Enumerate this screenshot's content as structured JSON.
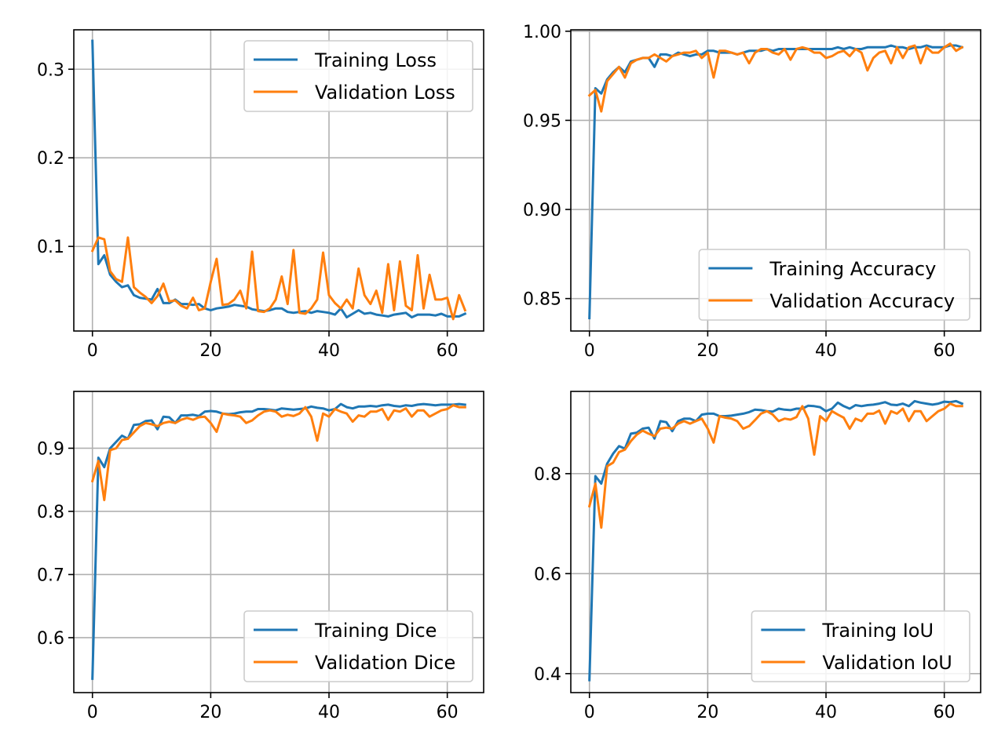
{
  "chart_data": [
    {
      "type": "line",
      "title": "",
      "xlabel": "",
      "ylabel": "",
      "xlim": [
        -3.15,
        66.15
      ],
      "ylim": [
        0.0045,
        0.3445
      ],
      "xticks": [
        0,
        20,
        40,
        60
      ],
      "yticks": [
        0.1,
        0.2,
        0.3
      ],
      "xtick_labels": [
        "0",
        "20",
        "40",
        "60"
      ],
      "ytick_labels": [
        "0.1",
        "0.2",
        "0.3"
      ],
      "grid": true,
      "legend_position": "upper right",
      "series": [
        {
          "name": "Training Loss",
          "color": "#1f77b4",
          "values": [
            0.332,
            0.08,
            0.09,
            0.068,
            0.06,
            0.054,
            0.056,
            0.045,
            0.042,
            0.041,
            0.04,
            0.052,
            0.036,
            0.036,
            0.04,
            0.035,
            0.035,
            0.034,
            0.035,
            0.03,
            0.028,
            0.03,
            0.031,
            0.032,
            0.034,
            0.033,
            0.032,
            0.029,
            0.028,
            0.027,
            0.028,
            0.03,
            0.03,
            0.026,
            0.025,
            0.026,
            0.027,
            0.025,
            0.027,
            0.026,
            0.025,
            0.023,
            0.03,
            0.02,
            0.024,
            0.028,
            0.024,
            0.025,
            0.023,
            0.022,
            0.021,
            0.023,
            0.024,
            0.025,
            0.02,
            0.023,
            0.023,
            0.023,
            0.022,
            0.024,
            0.021,
            0.021,
            0.021,
            0.024
          ]
        },
        {
          "name": "Validation Loss",
          "color": "#ff7f0e",
          "values": [
            0.095,
            0.11,
            0.108,
            0.072,
            0.063,
            0.06,
            0.11,
            0.054,
            0.048,
            0.043,
            0.036,
            0.044,
            0.058,
            0.038,
            0.039,
            0.033,
            0.03,
            0.042,
            0.028,
            0.03,
            0.06,
            0.086,
            0.034,
            0.035,
            0.04,
            0.05,
            0.03,
            0.094,
            0.027,
            0.026,
            0.03,
            0.04,
            0.066,
            0.035,
            0.096,
            0.025,
            0.024,
            0.03,
            0.04,
            0.093,
            0.045,
            0.036,
            0.03,
            0.04,
            0.03,
            0.075,
            0.045,
            0.035,
            0.05,
            0.025,
            0.08,
            0.028,
            0.083,
            0.033,
            0.028,
            0.09,
            0.03,
            0.068,
            0.04,
            0.04,
            0.042,
            0.018,
            0.045,
            0.028
          ]
        }
      ]
    },
    {
      "type": "line",
      "title": "",
      "xlabel": "",
      "ylabel": "",
      "xlim": [
        -3.15,
        66.15
      ],
      "ylim": [
        0.8318,
        1.0008
      ],
      "xticks": [
        0,
        20,
        40,
        60
      ],
      "yticks": [
        0.85,
        0.9,
        0.95,
        1.0
      ],
      "xtick_labels": [
        "0",
        "20",
        "40",
        "60"
      ],
      "ytick_labels": [
        "0.85",
        "0.90",
        "0.95",
        "1.00"
      ],
      "grid": true,
      "legend_position": "lower right",
      "series": [
        {
          "name": "Training Accuracy",
          "color": "#1f77b4",
          "values": [
            0.839,
            0.968,
            0.965,
            0.973,
            0.977,
            0.98,
            0.977,
            0.983,
            0.984,
            0.985,
            0.985,
            0.98,
            0.987,
            0.987,
            0.986,
            0.988,
            0.987,
            0.986,
            0.987,
            0.987,
            0.989,
            0.989,
            0.988,
            0.988,
            0.988,
            0.987,
            0.988,
            0.989,
            0.989,
            0.989,
            0.99,
            0.989,
            0.99,
            0.99,
            0.99,
            0.99,
            0.99,
            0.99,
            0.99,
            0.99,
            0.99,
            0.99,
            0.991,
            0.99,
            0.991,
            0.99,
            0.99,
            0.991,
            0.991,
            0.991,
            0.991,
            0.992,
            0.991,
            0.991,
            0.99,
            0.991,
            0.991,
            0.992,
            0.991,
            0.991,
            0.991,
            0.992,
            0.992,
            0.991
          ]
        },
        {
          "name": "Validation Accuracy",
          "color": "#ff7f0e",
          "values": [
            0.964,
            0.967,
            0.955,
            0.972,
            0.976,
            0.98,
            0.974,
            0.982,
            0.984,
            0.985,
            0.985,
            0.987,
            0.985,
            0.983,
            0.986,
            0.987,
            0.988,
            0.988,
            0.989,
            0.985,
            0.988,
            0.974,
            0.989,
            0.989,
            0.988,
            0.987,
            0.988,
            0.982,
            0.988,
            0.99,
            0.99,
            0.988,
            0.987,
            0.99,
            0.984,
            0.99,
            0.991,
            0.99,
            0.988,
            0.988,
            0.985,
            0.986,
            0.988,
            0.989,
            0.986,
            0.99,
            0.988,
            0.978,
            0.985,
            0.988,
            0.989,
            0.982,
            0.991,
            0.985,
            0.991,
            0.992,
            0.982,
            0.991,
            0.988,
            0.988,
            0.991,
            0.993,
            0.989,
            0.991
          ]
        }
      ]
    },
    {
      "type": "line",
      "title": "",
      "xlabel": "",
      "ylabel": "",
      "xlim": [
        -3.15,
        66.15
      ],
      "ylim": [
        0.513,
        0.99
      ],
      "xticks": [
        0,
        20,
        40,
        60
      ],
      "yticks": [
        0.6,
        0.7,
        0.8,
        0.9
      ],
      "xtick_labels": [
        "0",
        "20",
        "40",
        "60"
      ],
      "ytick_labels": [
        "0.6",
        "0.7",
        "0.8",
        "0.9"
      ],
      "grid": true,
      "legend_position": "lower right",
      "series": [
        {
          "name": "Training Dice",
          "color": "#1f77b4",
          "values": [
            0.535,
            0.885,
            0.87,
            0.9,
            0.91,
            0.92,
            0.915,
            0.937,
            0.938,
            0.943,
            0.944,
            0.93,
            0.95,
            0.949,
            0.94,
            0.952,
            0.952,
            0.953,
            0.951,
            0.958,
            0.959,
            0.958,
            0.955,
            0.954,
            0.955,
            0.957,
            0.958,
            0.958,
            0.962,
            0.962,
            0.961,
            0.96,
            0.963,
            0.962,
            0.961,
            0.962,
            0.963,
            0.966,
            0.964,
            0.963,
            0.96,
            0.962,
            0.97,
            0.965,
            0.963,
            0.966,
            0.966,
            0.967,
            0.966,
            0.968,
            0.969,
            0.967,
            0.966,
            0.968,
            0.967,
            0.969,
            0.97,
            0.969,
            0.968,
            0.969,
            0.969,
            0.969,
            0.97,
            0.969
          ]
        },
        {
          "name": "Validation Dice",
          "color": "#ff7f0e",
          "values": [
            0.848,
            0.88,
            0.818,
            0.897,
            0.9,
            0.913,
            0.915,
            0.925,
            0.935,
            0.94,
            0.938,
            0.935,
            0.94,
            0.942,
            0.94,
            0.945,
            0.948,
            0.945,
            0.949,
            0.95,
            0.94,
            0.926,
            0.955,
            0.953,
            0.952,
            0.95,
            0.94,
            0.944,
            0.952,
            0.958,
            0.96,
            0.958,
            0.95,
            0.953,
            0.951,
            0.955,
            0.965,
            0.95,
            0.912,
            0.955,
            0.95,
            0.962,
            0.958,
            0.955,
            0.942,
            0.952,
            0.95,
            0.958,
            0.958,
            0.962,
            0.945,
            0.96,
            0.958,
            0.963,
            0.95,
            0.96,
            0.96,
            0.95,
            0.955,
            0.96,
            0.962,
            0.968,
            0.965,
            0.965
          ]
        }
      ]
    },
    {
      "type": "line",
      "title": "",
      "xlabel": "",
      "ylabel": "",
      "xlim": [
        -3.15,
        66.15
      ],
      "ylim": [
        0.362,
        0.9645
      ],
      "xticks": [
        0,
        20,
        40,
        60
      ],
      "yticks": [
        0.4,
        0.6,
        0.8
      ],
      "xtick_labels": [
        "0",
        "20",
        "40",
        "60"
      ],
      "ytick_labels": [
        "0.4",
        "0.6",
        "0.8"
      ],
      "grid": true,
      "legend_position": "lower right",
      "series": [
        {
          "name": "Training IoU",
          "color": "#1f77b4",
          "values": [
            0.387,
            0.795,
            0.78,
            0.82,
            0.84,
            0.855,
            0.85,
            0.88,
            0.882,
            0.89,
            0.892,
            0.87,
            0.905,
            0.903,
            0.885,
            0.905,
            0.91,
            0.91,
            0.905,
            0.918,
            0.92,
            0.92,
            0.915,
            0.915,
            0.916,
            0.918,
            0.92,
            0.923,
            0.928,
            0.927,
            0.925,
            0.924,
            0.93,
            0.928,
            0.927,
            0.93,
            0.93,
            0.936,
            0.935,
            0.933,
            0.925,
            0.93,
            0.942,
            0.935,
            0.93,
            0.937,
            0.935,
            0.937,
            0.938,
            0.94,
            0.943,
            0.938,
            0.937,
            0.94,
            0.935,
            0.945,
            0.942,
            0.94,
            0.938,
            0.94,
            0.944,
            0.943,
            0.945,
            0.94
          ]
        },
        {
          "name": "Validation IoU",
          "color": "#ff7f0e",
          "values": [
            0.735,
            0.78,
            0.692,
            0.815,
            0.822,
            0.843,
            0.848,
            0.865,
            0.878,
            0.886,
            0.88,
            0.875,
            0.89,
            0.892,
            0.89,
            0.9,
            0.905,
            0.9,
            0.905,
            0.91,
            0.89,
            0.862,
            0.915,
            0.912,
            0.91,
            0.905,
            0.89,
            0.895,
            0.907,
            0.92,
            0.925,
            0.918,
            0.905,
            0.91,
            0.908,
            0.913,
            0.935,
            0.91,
            0.838,
            0.915,
            0.905,
            0.925,
            0.918,
            0.912,
            0.89,
            0.91,
            0.905,
            0.92,
            0.92,
            0.926,
            0.9,
            0.925,
            0.92,
            0.93,
            0.905,
            0.925,
            0.925,
            0.905,
            0.915,
            0.925,
            0.93,
            0.94,
            0.935,
            0.935
          ]
        }
      ]
    }
  ]
}
